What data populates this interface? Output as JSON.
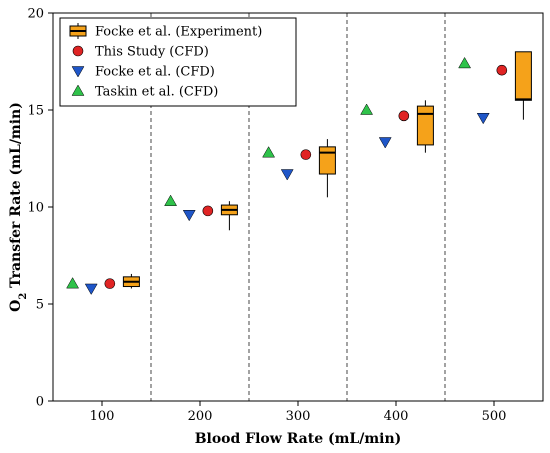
{
  "chart_data": {
    "type": "box-scatter",
    "xlabel": "Blood Flow Rate (mL/min)",
    "ylabel_main": "O",
    "ylabel_sub": "2",
    "ylabel_rest": " Transfer Rate (mL/min)",
    "xlim": [
      50,
      550
    ],
    "ylim": [
      0,
      20
    ],
    "xticks": [
      100,
      200,
      300,
      400,
      500
    ],
    "xtick_labels": [
      "100",
      "200",
      "300",
      "400",
      "500"
    ],
    "yticks": [
      0,
      5,
      10,
      15,
      20
    ],
    "ytick_labels": [
      "0",
      "5",
      "10",
      "15",
      "20"
    ],
    "group_dividers": [
      150,
      250,
      350,
      450,
      550
    ],
    "grid": false,
    "legend_position": "top-left",
    "colors": {
      "box_fill": "#f5a21a",
      "this_study": "#e02424",
      "focke_cfd": "#1f56c8",
      "taskin_cfd": "#2fc24a"
    },
    "series": [
      {
        "name": "Focke et al. (Experiment)",
        "kind": "box",
        "boxes": [
          {
            "x": 130,
            "whisker_low": 5.8,
            "q1": 5.9,
            "median": 6.15,
            "q3": 6.4,
            "whisker_high": 6.55
          },
          {
            "x": 230,
            "whisker_low": 8.8,
            "q1": 9.6,
            "median": 9.85,
            "q3": 10.1,
            "whisker_high": 10.3
          },
          {
            "x": 330,
            "whisker_low": 10.5,
            "q1": 11.7,
            "median": 12.8,
            "q3": 13.1,
            "whisker_high": 13.5
          },
          {
            "x": 430,
            "whisker_low": 12.8,
            "q1": 13.2,
            "median": 14.8,
            "q3": 15.2,
            "whisker_high": 15.5
          },
          {
            "x": 530,
            "whisker_low": 14.5,
            "q1": 15.5,
            "median": 15.55,
            "q3": 18.0,
            "whisker_high": 18.0
          }
        ]
      },
      {
        "name": "This Study (CFD)",
        "kind": "circle",
        "points": [
          {
            "x": 108,
            "y": 6.05
          },
          {
            "x": 208,
            "y": 9.8
          },
          {
            "x": 308,
            "y": 12.7
          },
          {
            "x": 408,
            "y": 14.7
          },
          {
            "x": 508,
            "y": 17.05
          }
        ]
      },
      {
        "name": "Focke et al. (CFD)",
        "kind": "triangle-down",
        "points": [
          {
            "x": 89,
            "y": 5.8
          },
          {
            "x": 189,
            "y": 9.6
          },
          {
            "x": 289,
            "y": 11.7
          },
          {
            "x": 389,
            "y": 13.35
          },
          {
            "x": 489,
            "y": 14.6
          }
        ]
      },
      {
        "name": "Taskin et al. (CFD)",
        "kind": "triangle-up",
        "points": [
          {
            "x": 70,
            "y": 6.05
          },
          {
            "x": 170,
            "y": 10.3
          },
          {
            "x": 270,
            "y": 12.8
          },
          {
            "x": 370,
            "y": 15.0
          },
          {
            "x": 470,
            "y": 17.4
          }
        ]
      }
    ]
  }
}
